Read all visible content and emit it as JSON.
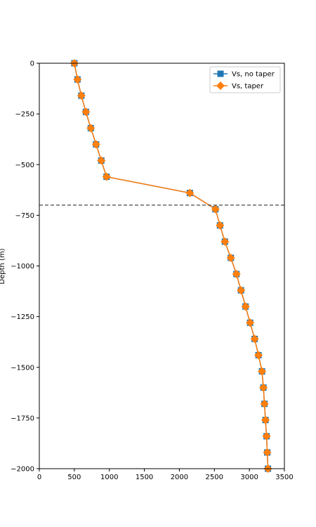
{
  "chart_data": {
    "type": "line",
    "title": "",
    "xlabel": "",
    "ylabel": "Depth (m)",
    "xlim": [
      0,
      3500
    ],
    "ylim": [
      -2000,
      0
    ],
    "xticks": [
      0,
      500,
      1000,
      1500,
      2000,
      2500,
      3000,
      3500
    ],
    "yticks": [
      0,
      -250,
      -500,
      -750,
      -1000,
      -1250,
      -1500,
      -1750,
      -2000
    ],
    "xtick_labels": [
      "0",
      "500",
      "1000",
      "1500",
      "2000",
      "2500",
      "3000",
      "3500"
    ],
    "ytick_labels": [
      "0",
      "−250",
      "−500",
      "−750",
      "−1000",
      "−1250",
      "−1500",
      "−1750",
      "−2000"
    ],
    "reference_line": {
      "y": -700,
      "style": "dashed",
      "color": "#333333"
    },
    "legend_position": "top-right",
    "grid": false,
    "series": [
      {
        "name": "Vs, no taper",
        "color": "#1f77b4",
        "marker": "square",
        "x": [
          500,
          545,
          600,
          665,
          735,
          810,
          885,
          960,
          2150,
          2515,
          2580,
          2650,
          2735,
          2815,
          2880,
          2945,
          3010,
          3075,
          3130,
          3180,
          3200,
          3215,
          3230,
          3245,
          3255,
          3265
        ],
        "y": [
          0,
          -80,
          -160,
          -240,
          -320,
          -400,
          -480,
          -560,
          -640,
          -720,
          -800,
          -880,
          -960,
          -1040,
          -1120,
          -1200,
          -1280,
          -1360,
          -1440,
          -1520,
          -1600,
          -1680,
          -1760,
          -1840,
          -1920,
          -2000
        ]
      },
      {
        "name": "Vs, taper",
        "color": "#ff7f0e",
        "marker": "diamond",
        "x": [
          500,
          545,
          600,
          665,
          735,
          810,
          885,
          960,
          2150,
          2515,
          2580,
          2650,
          2735,
          2815,
          2880,
          2945,
          3010,
          3075,
          3130,
          3180,
          3200,
          3215,
          3230,
          3245,
          3255,
          3265
        ],
        "y": [
          0,
          -80,
          -160,
          -240,
          -320,
          -400,
          -480,
          -560,
          -640,
          -720,
          -800,
          -880,
          -960,
          -1040,
          -1120,
          -1200,
          -1280,
          -1360,
          -1440,
          -1520,
          -1600,
          -1680,
          -1760,
          -1840,
          -1920,
          -2000
        ]
      }
    ]
  }
}
